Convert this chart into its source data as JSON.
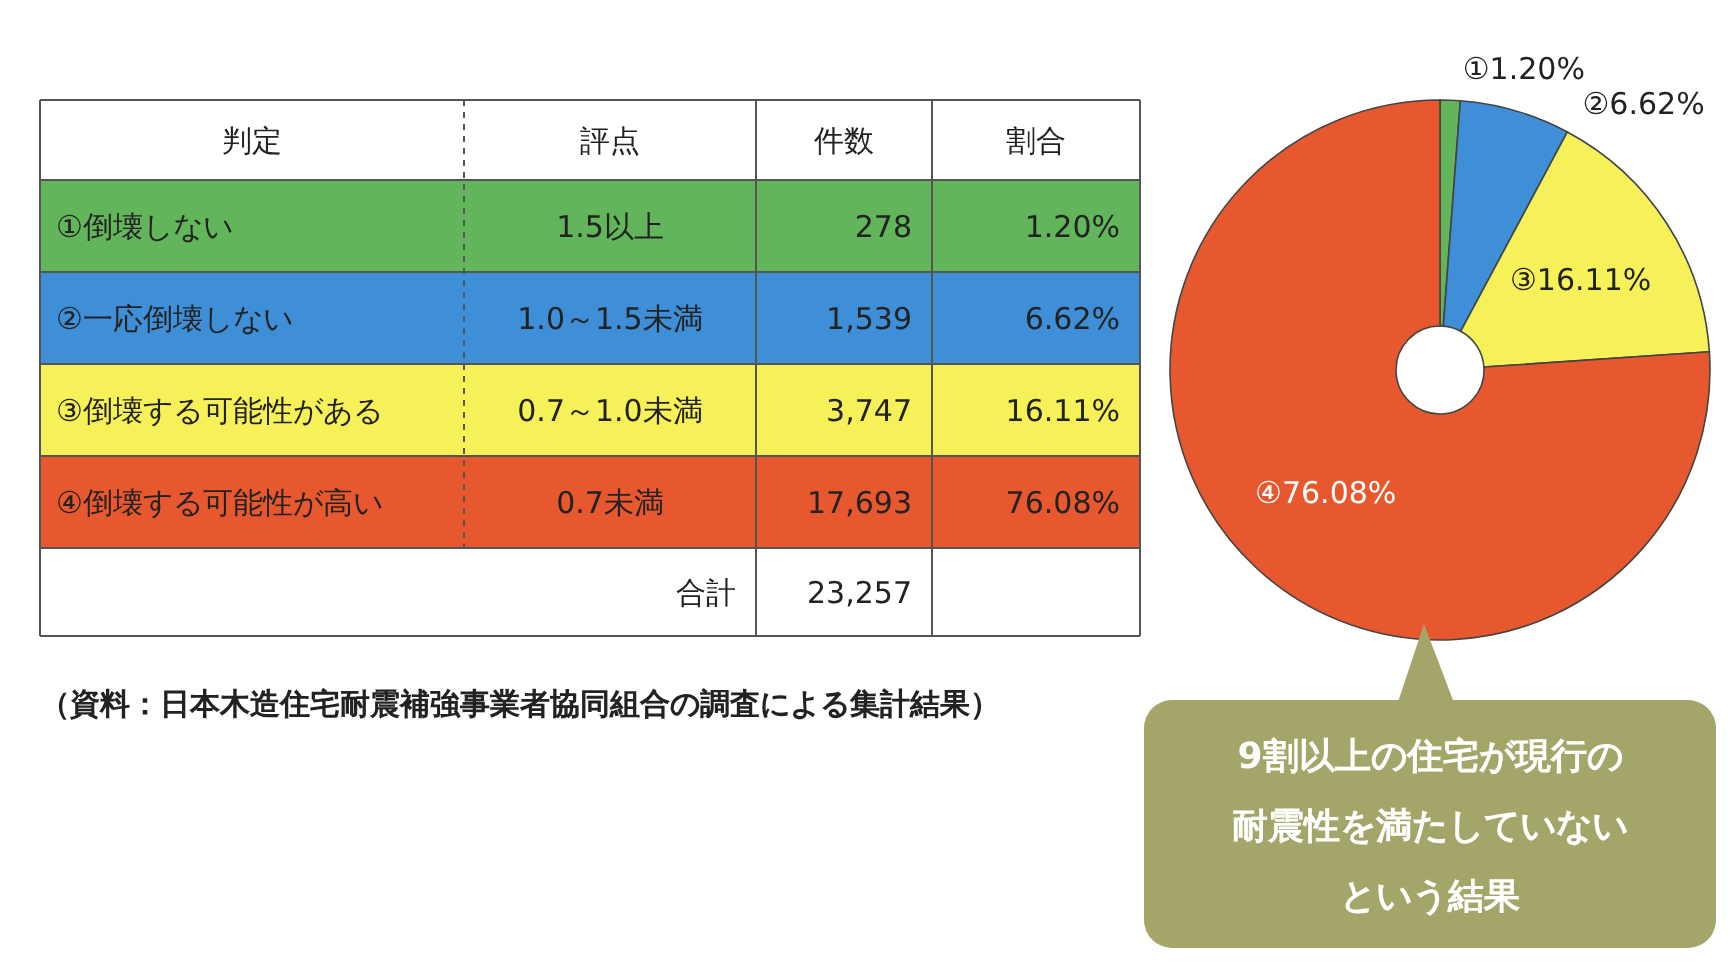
{
  "chart_data": [
    {
      "type": "other",
      "annotations": [
        "判定",
        "評点",
        "件数",
        "割合",
        "①倒壊しない",
        "1.5以上",
        "278",
        "1.20%",
        "②一応倒壊しない",
        "1.0～1.5未満",
        "1,539",
        "6.62%",
        "③倒壊する可能性がある",
        "0.7～1.0未満",
        "3,747",
        "16.11%",
        "④倒壊する可能性が高い",
        "0.7未満",
        "17,693",
        "76.08%",
        "合計",
        "23,257",
        "（資料：日本木造住宅耐震補強事業者協同組合の調査による集計結果）"
      ]
    },
    {
      "type": "donut",
      "categories": [
        null,
        null,
        null,
        null
      ],
      "values": [
        1.2,
        6.62,
        16.11,
        76.08
      ],
      "colors": [
        "#62b55a",
        "#3f8fd8",
        "#f7f159",
        "#e8582f"
      ],
      "value_labels": [
        "①1.20%",
        "②6.62%",
        "③16.11%",
        "④76.08%"
      ],
      "annotations": [
        "9割以上の住宅が現行の",
        "耐震性を満たしていない",
        "という結果"
      ]
    }
  ]
}
